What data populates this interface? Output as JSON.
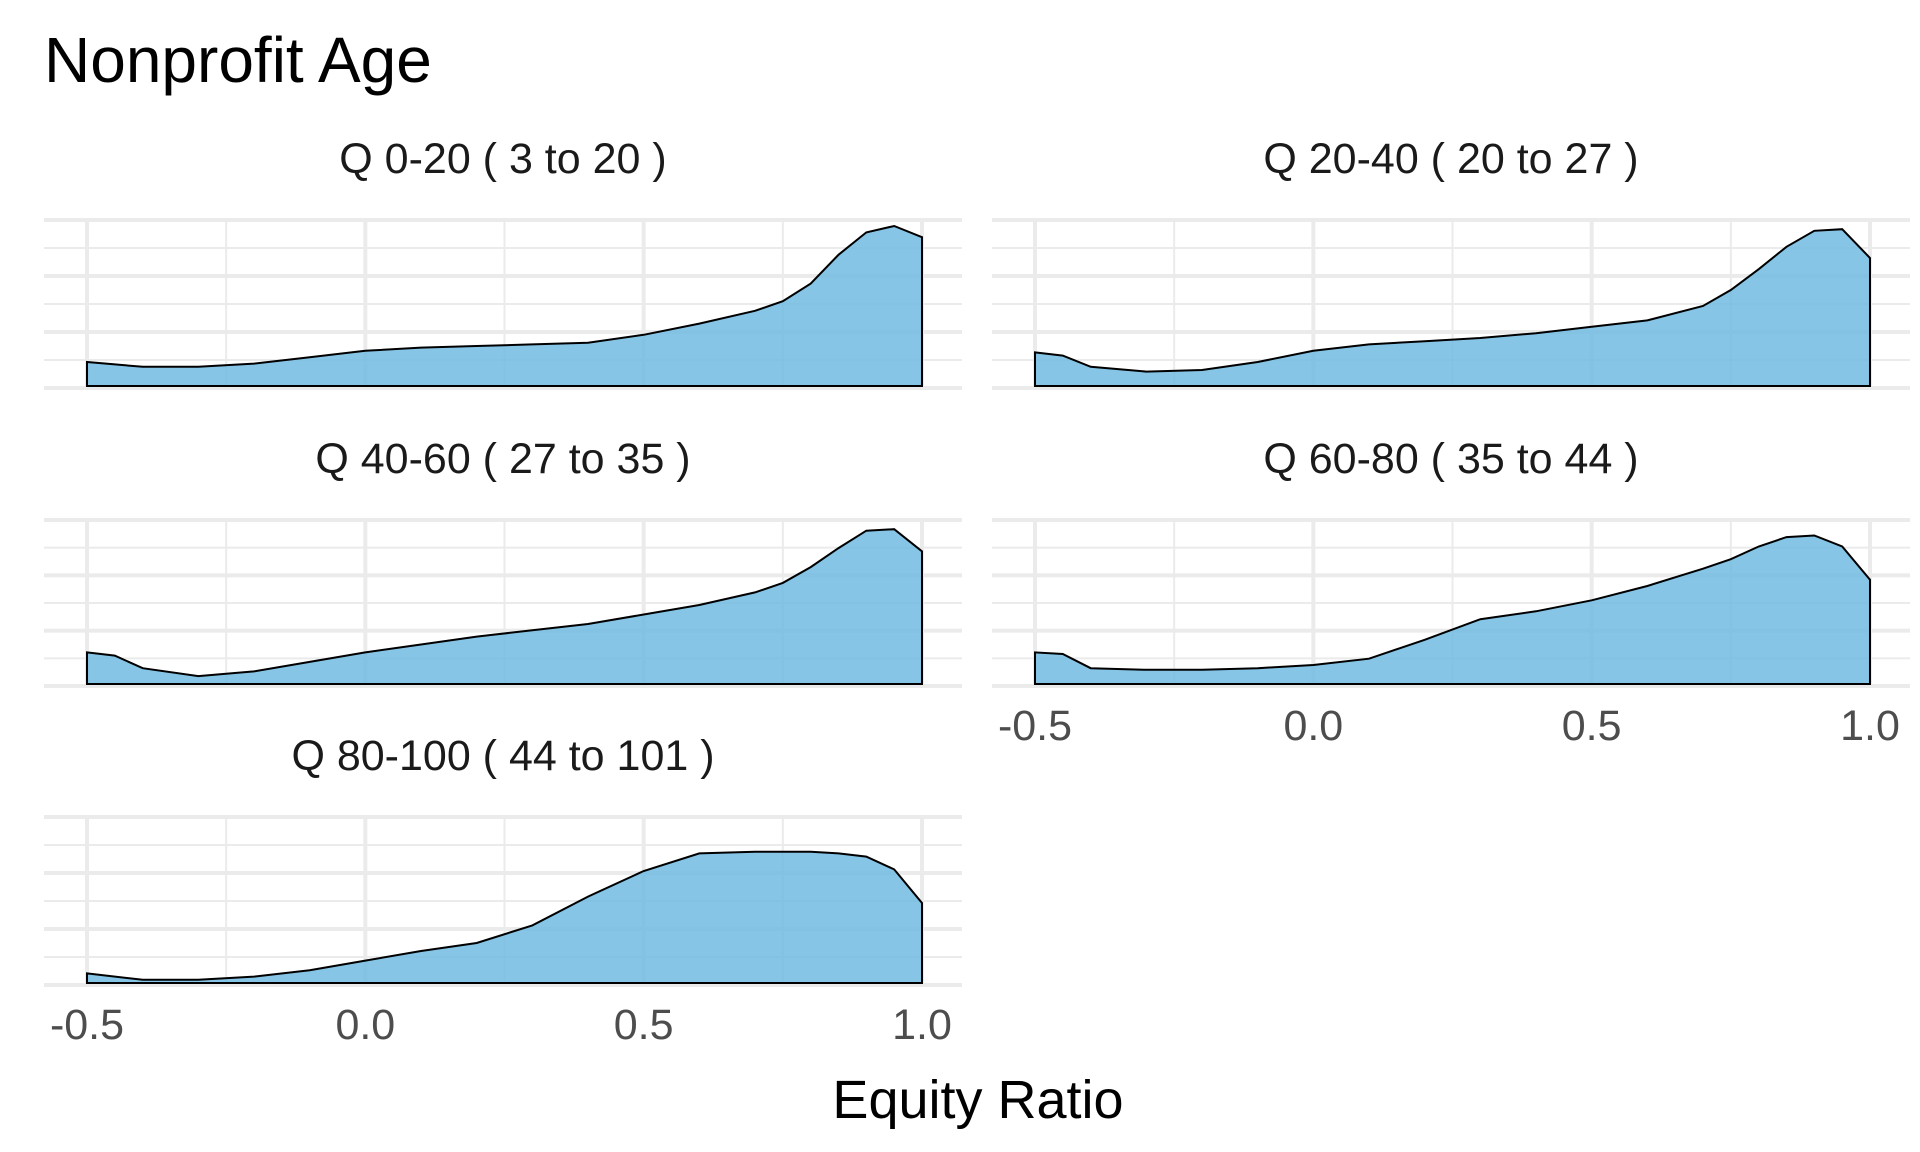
{
  "chart_data": {
    "type": "area",
    "title": "Nonprofit Age",
    "xlabel": "Equity Ratio",
    "ylabel": "",
    "xlim": [
      -0.5,
      1.0
    ],
    "x_ticks": [
      -0.5,
      0.0,
      0.5,
      1.0
    ],
    "x_tick_labels": [
      "-0.5",
      "0.0",
      "0.5",
      "1.0"
    ],
    "grid": true,
    "fill_color": "#6bb8e0",
    "outline_color": "#000000",
    "panels": [
      {
        "label": "Q 0-20   ( 3 to 20 )",
        "x": [
          -0.5,
          -0.4,
          -0.3,
          -0.2,
          -0.1,
          0.0,
          0.1,
          0.2,
          0.3,
          0.4,
          0.5,
          0.6,
          0.7,
          0.75,
          0.8,
          0.85,
          0.9,
          0.95,
          1.0
        ],
        "density": [
          0.15,
          0.12,
          0.12,
          0.14,
          0.18,
          0.22,
          0.24,
          0.25,
          0.26,
          0.27,
          0.32,
          0.39,
          0.47,
          0.53,
          0.64,
          0.82,
          0.96,
          1.0,
          0.93
        ]
      },
      {
        "label": "Q 20-40   ( 20 to 27 )",
        "x": [
          -0.5,
          -0.45,
          -0.4,
          -0.3,
          -0.2,
          -0.1,
          0.0,
          0.1,
          0.2,
          0.3,
          0.4,
          0.5,
          0.6,
          0.7,
          0.75,
          0.8,
          0.85,
          0.9,
          0.95,
          1.0
        ],
        "density": [
          0.21,
          0.19,
          0.12,
          0.09,
          0.1,
          0.15,
          0.22,
          0.26,
          0.28,
          0.3,
          0.33,
          0.37,
          0.41,
          0.5,
          0.6,
          0.73,
          0.87,
          0.97,
          0.98,
          0.8
        ]
      },
      {
        "label": "Q 40-60   ( 27 to 35 )",
        "x": [
          -0.5,
          -0.45,
          -0.4,
          -0.3,
          -0.2,
          -0.1,
          0.0,
          0.1,
          0.2,
          0.3,
          0.4,
          0.5,
          0.6,
          0.7,
          0.75,
          0.8,
          0.85,
          0.9,
          0.95,
          1.0
        ],
        "density": [
          0.2,
          0.18,
          0.1,
          0.05,
          0.08,
          0.14,
          0.2,
          0.25,
          0.3,
          0.34,
          0.38,
          0.44,
          0.5,
          0.58,
          0.64,
          0.74,
          0.86,
          0.97,
          0.98,
          0.84
        ]
      },
      {
        "label": "Q 60-80   ( 35 to 44 )",
        "x": [
          -0.5,
          -0.45,
          -0.4,
          -0.3,
          -0.2,
          -0.1,
          0.0,
          0.1,
          0.2,
          0.3,
          0.4,
          0.5,
          0.6,
          0.7,
          0.75,
          0.8,
          0.85,
          0.9,
          0.95,
          1.0
        ],
        "density": [
          0.2,
          0.19,
          0.1,
          0.09,
          0.09,
          0.1,
          0.12,
          0.16,
          0.28,
          0.41,
          0.46,
          0.53,
          0.62,
          0.73,
          0.79,
          0.87,
          0.93,
          0.94,
          0.87,
          0.66
        ]
      },
      {
        "label": "Q 80-100   ( 44 to 101 )",
        "x": [
          -0.5,
          -0.4,
          -0.3,
          -0.2,
          -0.1,
          0.0,
          0.1,
          0.2,
          0.3,
          0.4,
          0.5,
          0.6,
          0.7,
          0.8,
          0.85,
          0.9,
          0.95,
          1.0
        ],
        "density": [
          0.06,
          0.02,
          0.02,
          0.04,
          0.08,
          0.14,
          0.2,
          0.25,
          0.36,
          0.54,
          0.7,
          0.81,
          0.82,
          0.82,
          0.81,
          0.79,
          0.71,
          0.5
        ]
      }
    ]
  }
}
